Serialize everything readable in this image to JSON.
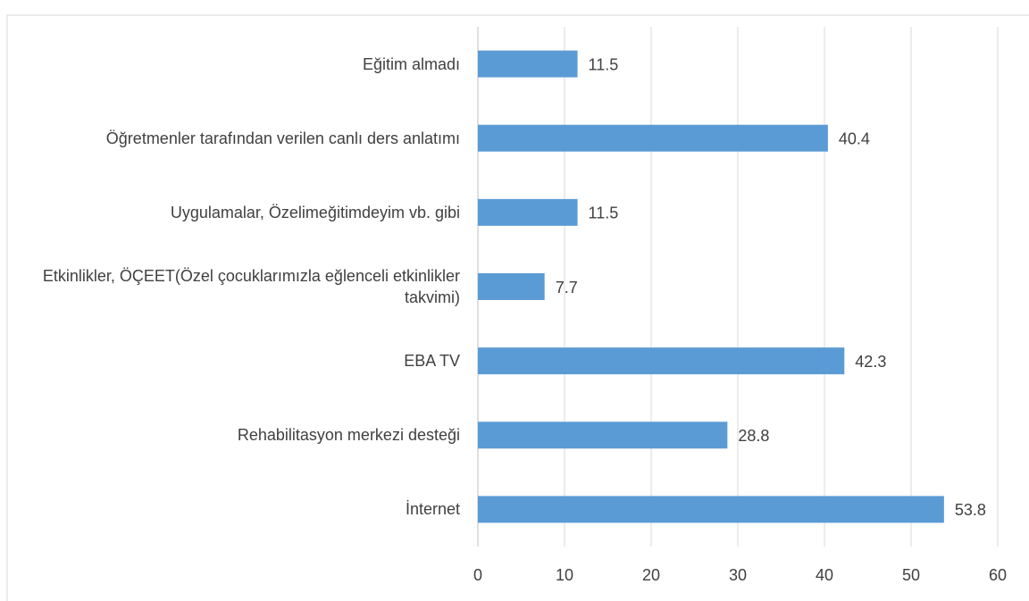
{
  "chart_data": {
    "type": "barh",
    "categories": [
      "Eğitim almadı",
      "Öğretmenler tarafından verilen canlı ders anlatımı",
      "Uygulamalar, Özelimeğitimdeyim vb. gibi",
      "Etkinlikler, ÖÇEET(Özel çocuklarımızla eğlenceli etkinlikler takvimi)",
      "EBA TV",
      "Rehabilitasyon merkezi desteği",
      "İnternet"
    ],
    "values": [
      11.5,
      40.4,
      11.5,
      7.7,
      42.3,
      28.8,
      53.8
    ],
    "color": "#5b9bd5",
    "xlim": [
      0,
      60
    ],
    "xticks": [
      0,
      10,
      20,
      30,
      40,
      50,
      60
    ],
    "grid": true
  }
}
